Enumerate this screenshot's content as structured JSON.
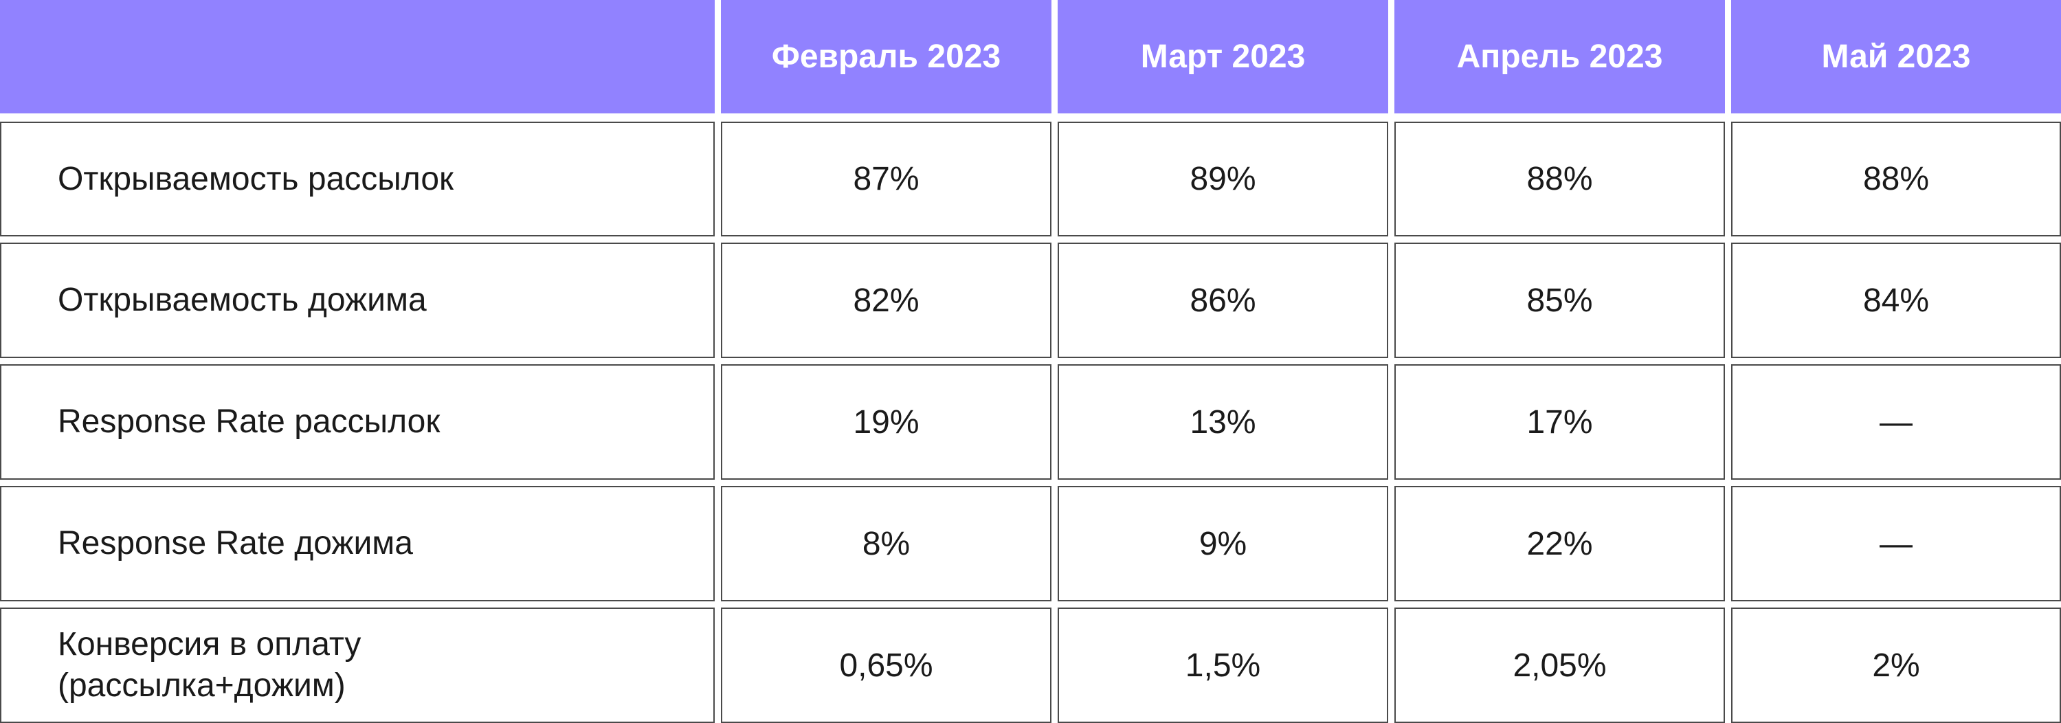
{
  "chart_data": {
    "type": "table",
    "columns": [
      "",
      "Февраль 2023",
      "Март 2023",
      "Апрель 2023",
      "Май 2023"
    ],
    "rows": [
      {
        "label": "Открываемость рассылок",
        "values": [
          "87%",
          "89%",
          "88%",
          "88%"
        ]
      },
      {
        "label": "Открываемость дожима",
        "values": [
          "82%",
          "86%",
          "85%",
          "84%"
        ]
      },
      {
        "label": "Response Rate рассылок",
        "values": [
          "19%",
          "13%",
          "17%",
          "—"
        ]
      },
      {
        "label": "Response Rate дожима",
        "values": [
          "8%",
          "9%",
          "22%",
          "—"
        ]
      },
      {
        "label": "Конверсия в оплату\n(рассылка+дожим)",
        "values": [
          "0,65%",
          "1,5%",
          "2,05%",
          "2%"
        ]
      }
    ]
  },
  "colors": {
    "header_bg": "#9182ff",
    "header_text": "#ffffff",
    "cell_border": "#4a4a4a",
    "cell_text": "#1a1a1a"
  }
}
